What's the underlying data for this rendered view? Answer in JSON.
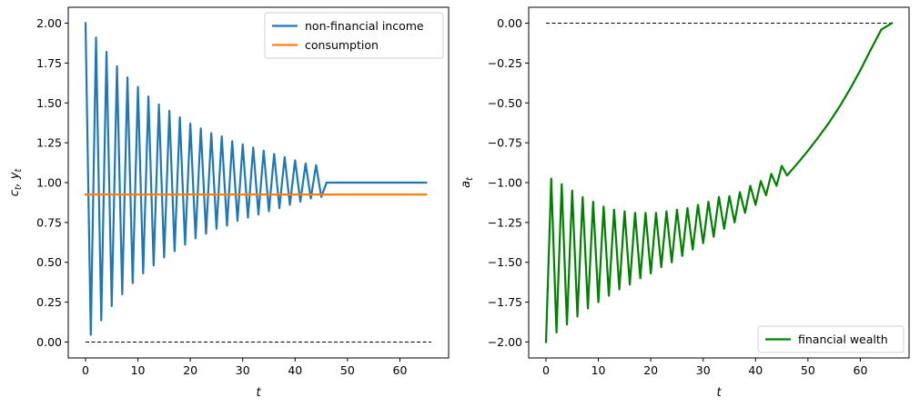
{
  "chart_data": [
    {
      "type": "line",
      "xlabel": "t",
      "ylabel": "c_t, y_t",
      "ylabel_parts": [
        {
          "text": "c",
          "kind": "base"
        },
        {
          "text": "t",
          "kind": "sub"
        },
        {
          "text": ", ",
          "kind": "base"
        },
        {
          "text": "y",
          "kind": "base"
        },
        {
          "text": "t",
          "kind": "sub"
        }
      ],
      "xlim": [
        -3.3,
        69.3
      ],
      "ylim": [
        -0.1,
        2.1
      ],
      "xticks": [
        0,
        10,
        20,
        30,
        40,
        50,
        60
      ],
      "xtick_labels": [
        "0",
        "10",
        "20",
        "30",
        "40",
        "50",
        "60"
      ],
      "yticks": [
        0.0,
        0.25,
        0.5,
        0.75,
        1.0,
        1.25,
        1.5,
        1.75,
        2.0
      ],
      "ytick_labels": [
        "0.00",
        "0.25",
        "0.50",
        "0.75",
        "1.00",
        "1.25",
        "1.50",
        "1.75",
        "2.00"
      ],
      "legend_position": "top-right",
      "series": [
        {
          "name": "non-financial income",
          "color": "#1f77b4",
          "x": [
            0,
            1,
            2,
            3,
            4,
            5,
            6,
            7,
            8,
            9,
            10,
            11,
            12,
            13,
            14,
            15,
            16,
            17,
            18,
            19,
            20,
            21,
            22,
            23,
            24,
            25,
            26,
            27,
            28,
            29,
            30,
            31,
            32,
            33,
            34,
            35,
            36,
            37,
            38,
            39,
            40,
            41,
            42,
            43,
            44,
            45,
            46,
            47,
            48,
            49,
            50,
            51,
            52,
            53,
            54,
            55,
            56,
            57,
            58,
            59,
            60,
            61,
            62,
            63,
            64,
            65
          ],
          "y": [
            2.0,
            0.045,
            1.91,
            0.135,
            1.82,
            0.225,
            1.73,
            0.3,
            1.66,
            0.37,
            1.6,
            0.43,
            1.54,
            0.48,
            1.49,
            0.53,
            1.45,
            0.57,
            1.41,
            0.61,
            1.37,
            0.65,
            1.34,
            0.68,
            1.31,
            0.71,
            1.29,
            0.73,
            1.26,
            0.76,
            1.24,
            0.78,
            1.22,
            0.8,
            1.2,
            0.82,
            1.18,
            0.84,
            1.16,
            0.86,
            1.14,
            0.88,
            1.12,
            0.9,
            1.11,
            0.91,
            1.0,
            1.0,
            1.0,
            1.0,
            1.0,
            1.0,
            1.0,
            1.0,
            1.0,
            1.0,
            1.0,
            1.0,
            1.0,
            1.0,
            1.0,
            1.0,
            1.0,
            1.0,
            1.0,
            1.0
          ]
        },
        {
          "name": "consumption",
          "color": "#ff7f0e",
          "x": [
            0,
            65
          ],
          "y": [
            0.925,
            0.925
          ]
        }
      ],
      "reference_line": {
        "x": [
          0,
          66
        ],
        "y": [
          0,
          0
        ],
        "style": "dashed",
        "color": "#000000"
      }
    },
    {
      "type": "line",
      "xlabel": "t",
      "ylabel": "a_t",
      "ylabel_parts": [
        {
          "text": "a",
          "kind": "base"
        },
        {
          "text": "t",
          "kind": "sub"
        }
      ],
      "xlim": [
        -3.3,
        69.3
      ],
      "ylim": [
        -2.1,
        0.1
      ],
      "xticks": [
        0,
        10,
        20,
        30,
        40,
        50,
        60
      ],
      "xtick_labels": [
        "0",
        "10",
        "20",
        "30",
        "40",
        "50",
        "60"
      ],
      "yticks": [
        -2.0,
        -1.75,
        -1.5,
        -1.25,
        -1.0,
        -0.75,
        -0.5,
        -0.25,
        0.0
      ],
      "ytick_labels": [
        "−2.00",
        "−1.75",
        "−1.50",
        "−1.25",
        "−1.00",
        "−0.75",
        "−0.50",
        "−0.25",
        "0.00"
      ],
      "legend_position": "bottom-right",
      "series": [
        {
          "name": "financial wealth",
          "color": "#008000",
          "x": [
            0,
            1,
            2,
            3,
            4,
            5,
            6,
            7,
            8,
            9,
            10,
            11,
            12,
            13,
            14,
            15,
            16,
            17,
            18,
            19,
            20,
            21,
            22,
            23,
            24,
            25,
            26,
            27,
            28,
            29,
            30,
            31,
            32,
            33,
            34,
            35,
            36,
            37,
            38,
            39,
            40,
            41,
            42,
            43,
            44,
            45,
            46,
            48,
            50,
            52,
            54,
            56,
            58,
            60,
            62,
            64,
            66
          ],
          "y": [
            -2.0,
            -0.975,
            -1.94,
            -1.01,
            -1.89,
            -1.05,
            -1.84,
            -1.09,
            -1.79,
            -1.12,
            -1.75,
            -1.15,
            -1.71,
            -1.17,
            -1.67,
            -1.18,
            -1.64,
            -1.19,
            -1.6,
            -1.19,
            -1.57,
            -1.19,
            -1.53,
            -1.18,
            -1.5,
            -1.17,
            -1.46,
            -1.16,
            -1.42,
            -1.14,
            -1.38,
            -1.12,
            -1.34,
            -1.09,
            -1.29,
            -1.085,
            -1.25,
            -1.06,
            -1.19,
            -1.02,
            -1.14,
            -0.99,
            -1.08,
            -0.945,
            -1.02,
            -0.895,
            -0.955,
            -0.88,
            -0.8,
            -0.715,
            -0.625,
            -0.525,
            -0.415,
            -0.295,
            -0.165,
            -0.04,
            0.0
          ]
        }
      ],
      "reference_line": {
        "x": [
          0,
          66
        ],
        "y": [
          0,
          0
        ],
        "style": "dashed",
        "color": "#000000"
      }
    }
  ]
}
